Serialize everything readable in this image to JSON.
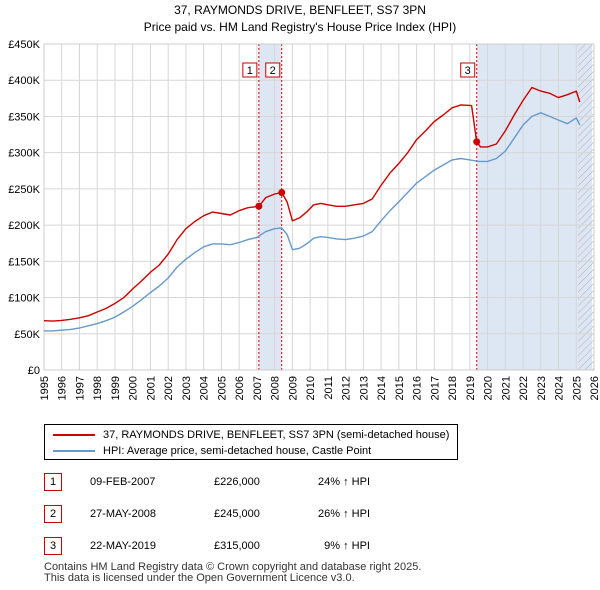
{
  "chart_data": {
    "type": "line",
    "title": "37, RAYMONDS DRIVE, BENFLEET, SS7 3PN",
    "subtitle": "Price paid vs. HM Land Registry's House Price Index (HPI)",
    "xlim": [
      1995,
      2026
    ],
    "ylim": [
      0,
      450000
    ],
    "x_ticks": [
      1995,
      1996,
      1997,
      1998,
      1999,
      2000,
      2001,
      2002,
      2003,
      2004,
      2005,
      2006,
      2007,
      2008,
      2009,
      2010,
      2011,
      2012,
      2013,
      2014,
      2015,
      2016,
      2017,
      2018,
      2019,
      2020,
      2021,
      2022,
      2023,
      2024,
      2025,
      2026
    ],
    "y_ticks": [
      0,
      50000,
      100000,
      150000,
      200000,
      250000,
      300000,
      350000,
      400000,
      450000
    ],
    "y_tick_labels": [
      "£0",
      "£50K",
      "£100K",
      "£150K",
      "£200K",
      "£250K",
      "£300K",
      "£350K",
      "£400K",
      "£450K"
    ],
    "grid": true,
    "colors": {
      "property": "#cc0000",
      "hpi": "#6699cc",
      "shade": "#dde6f3"
    },
    "shaded_ranges": [
      [
        2007.11,
        2008.4
      ],
      [
        2019.39,
        2025.9
      ]
    ],
    "hatched_from": 2025.1,
    "series": [
      {
        "name": "37, RAYMONDS DRIVE, BENFLEET, SS7 3PN (semi-detached house)",
        "color": "#cc0000",
        "x": [
          1995,
          1995.5,
          1996,
          1996.5,
          1997,
          1997.5,
          1998,
          1998.5,
          1999,
          1999.5,
          2000,
          2000.5,
          2001,
          2001.5,
          2002,
          2002.5,
          2003,
          2003.5,
          2004,
          2004.5,
          2005,
          2005.5,
          2006,
          2006.5,
          2007.11,
          2007.5,
          2008.0,
          2008.4,
          2008.7,
          2009.0,
          2009.4,
          2009.8,
          2010.2,
          2010.6,
          2011,
          2011.5,
          2012,
          2012.5,
          2013,
          2013.5,
          2014,
          2014.5,
          2015,
          2015.5,
          2016,
          2016.5,
          2017,
          2017.5,
          2018,
          2018.5,
          2019.1,
          2019.39,
          2019.6,
          2020,
          2020.5,
          2021,
          2021.5,
          2022,
          2022.5,
          2023,
          2023.5,
          2024,
          2024.5,
          2025.0,
          2025.2
        ],
        "values": [
          68000,
          67500,
          68500,
          70000,
          72000,
          75000,
          80000,
          85000,
          92000,
          100000,
          112000,
          123000,
          135000,
          145000,
          160000,
          180000,
          195000,
          205000,
          213000,
          218000,
          216000,
          214000,
          220000,
          224000,
          226000,
          238000,
          243000,
          245000,
          232000,
          206000,
          210000,
          218000,
          228000,
          230000,
          228000,
          226000,
          226000,
          228000,
          230000,
          236000,
          255000,
          272000,
          285000,
          300000,
          318000,
          330000,
          343000,
          352000,
          362000,
          366000,
          365000,
          315000,
          308000,
          308000,
          312000,
          330000,
          352000,
          372000,
          390000,
          385000,
          382000,
          376000,
          380000,
          385000,
          370000
        ]
      },
      {
        "name": "HPI: Average price, semi-detached house, Castle Point",
        "color": "#6699cc",
        "x": [
          1995,
          1995.5,
          1996,
          1996.5,
          1997,
          1997.5,
          1998,
          1998.5,
          1999,
          1999.5,
          2000,
          2000.5,
          2001,
          2001.5,
          2002,
          2002.5,
          2003,
          2003.5,
          2004,
          2004.5,
          2005,
          2005.5,
          2006,
          2006.5,
          2007,
          2007.5,
          2008,
          2008.4,
          2008.7,
          2009.0,
          2009.4,
          2009.8,
          2010.2,
          2010.6,
          2011,
          2011.5,
          2012,
          2012.5,
          2013,
          2013.5,
          2014,
          2014.5,
          2015,
          2015.5,
          2016,
          2016.5,
          2017,
          2017.5,
          2018,
          2018.5,
          2019,
          2019.5,
          2020,
          2020.5,
          2021,
          2021.5,
          2022,
          2022.5,
          2023,
          2023.5,
          2024,
          2024.5,
          2025.0,
          2025.2
        ],
        "values": [
          54000,
          54000,
          55000,
          56000,
          58000,
          61000,
          64000,
          68000,
          73000,
          80000,
          88000,
          97000,
          107000,
          116000,
          127000,
          142000,
          153000,
          162000,
          170000,
          174000,
          174000,
          173000,
          176000,
          180000,
          183000,
          191000,
          195000,
          196000,
          187000,
          166000,
          168000,
          174000,
          182000,
          184000,
          183000,
          181000,
          180000,
          182000,
          185000,
          191000,
          206000,
          220000,
          232000,
          245000,
          258000,
          267000,
          276000,
          283000,
          290000,
          292000,
          290000,
          288000,
          288000,
          292000,
          302000,
          320000,
          338000,
          350000,
          355000,
          350000,
          345000,
          340000,
          348000,
          338000
        ]
      }
    ],
    "sales": [
      {
        "label": "1",
        "x": 2007.11,
        "value": 226000
      },
      {
        "label": "2",
        "x": 2008.4,
        "value": 245000
      },
      {
        "label": "3",
        "x": 2019.39,
        "value": 315000
      }
    ]
  },
  "legend": {
    "property": "37, RAYMONDS DRIVE, BENFLEET, SS7 3PN (semi-detached house)",
    "hpi": "HPI: Average price, semi-detached house, Castle Point"
  },
  "transactions": [
    {
      "num": "1",
      "date": "09-FEB-2007",
      "price": "£226,000",
      "hpi": "24% ↑ HPI"
    },
    {
      "num": "2",
      "date": "27-MAY-2008",
      "price": "£245,000",
      "hpi": "26% ↑ HPI"
    },
    {
      "num": "3",
      "date": "22-MAY-2019",
      "price": "£315,000",
      "hpi": "9% ↑ HPI"
    }
  ],
  "footer": {
    "line1": "Contains HM Land Registry data © Crown copyright and database right 2025.",
    "line2": "This data is licensed under the Open Government Licence v3.0."
  }
}
